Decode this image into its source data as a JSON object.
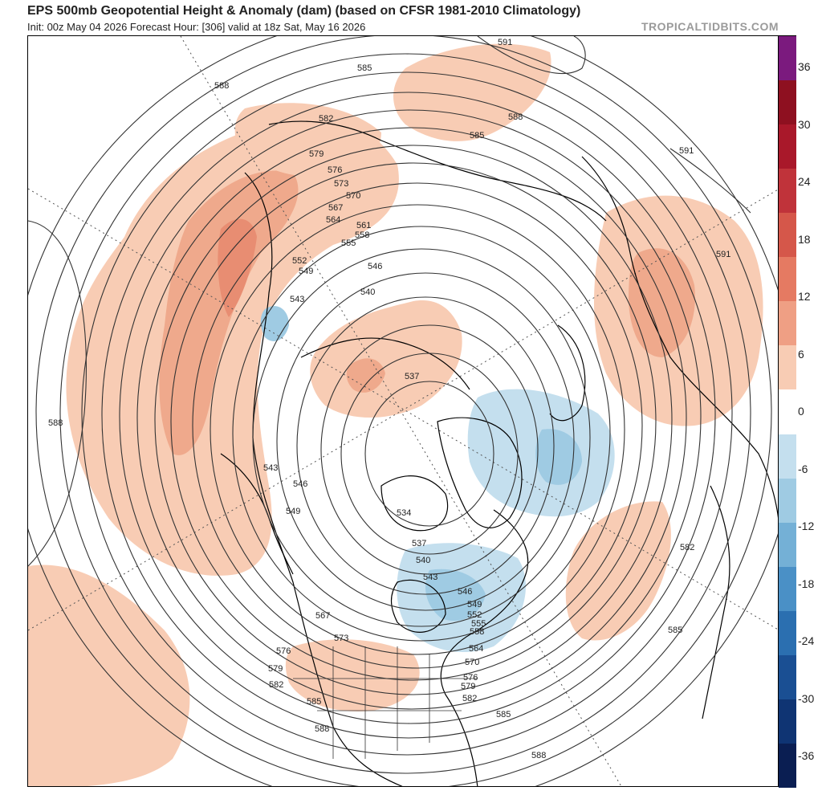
{
  "header": {
    "title": "EPS 500mb Geopotential Height & Anomaly (dam) (based on CFSR 1981-2010 Climatology)",
    "subtitle": "Init: 00z May 04 2026   Forecast Hour: [306]   valid at 18z Sat, May 16 2026",
    "brand": "TROPICALTIDBITS.COM"
  },
  "colorbar": {
    "labels": [
      "36",
      "30",
      "24",
      "18",
      "12",
      "6",
      "0",
      "-6",
      "-12",
      "-18",
      "-24",
      "-30",
      "-36"
    ],
    "colors": [
      "#7b1a7e",
      "#8e1020",
      "#a9182a",
      "#c0333a",
      "#d5574a",
      "#e57a62",
      "#ef9f84",
      "#f8ccb4",
      "#ffffff",
      "#c4dfee",
      "#9fcbe3",
      "#74b0d6",
      "#4a90c6",
      "#2b6fb0",
      "#1a4f93",
      "#0f3473",
      "#0a1e52"
    ]
  },
  "map": {
    "contour_labels": [
      "591",
      "585",
      "588",
      "582",
      "585",
      "579",
      "588",
      "591",
      "576",
      "573",
      "570",
      "567",
      "564",
      "561",
      "558",
      "555",
      "552",
      "549",
      "546",
      "543",
      "540",
      "537",
      "591",
      "588",
      "543",
      "546",
      "549",
      "534",
      "537",
      "540",
      "543",
      "546",
      "549",
      "552",
      "555",
      "558",
      "564",
      "570",
      "576",
      "579",
      "582",
      "567",
      "573",
      "576",
      "579",
      "582",
      "585",
      "585",
      "588",
      "588",
      "582",
      "585"
    ]
  }
}
